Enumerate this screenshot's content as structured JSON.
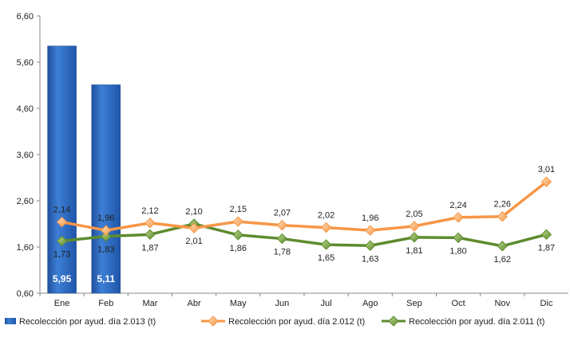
{
  "chart_data": {
    "type": "bar+line",
    "categories": [
      "Ene",
      "Feb",
      "Mar",
      "Abr",
      "May",
      "Jun",
      "Jul",
      "Ago",
      "Sep",
      "Oct",
      "Nov",
      "Dic"
    ],
    "ylim": [
      0.6,
      6.6
    ],
    "yticks": [
      "0,60",
      "1,60",
      "2,60",
      "3,60",
      "4,60",
      "5,60",
      "6,60"
    ],
    "ytick_values": [
      0.6,
      1.6,
      2.6,
      3.6,
      4.6,
      5.6,
      6.6
    ],
    "grid": false,
    "legend_position": "bottom",
    "series": [
      {
        "name": "Recolección por ayud. día 2.013 (t)",
        "kind": "bar",
        "color": "#2f6fc4",
        "values": [
          5.95,
          5.11,
          null,
          null,
          null,
          null,
          null,
          null,
          null,
          null,
          null,
          null
        ],
        "labels": [
          "5,95",
          "5,11"
        ]
      },
      {
        "name": "Recolección por ayud. día 2.012 (t)",
        "kind": "line",
        "color": "#f79646",
        "values": [
          2.14,
          1.96,
          2.12,
          2.01,
          2.15,
          2.07,
          2.02,
          1.96,
          2.05,
          2.24,
          2.26,
          3.01
        ],
        "labels": [
          "2,14",
          "1,96",
          "2,12",
          "2,01",
          "2,15",
          "2,07",
          "2,02",
          "1,96",
          "2,05",
          "2,24",
          "2,26",
          "3,01"
        ]
      },
      {
        "name": "Recolección por ayud. día 2.011 (t)",
        "kind": "line",
        "color": "#5e8b2e",
        "values": [
          1.73,
          1.83,
          1.87,
          2.1,
          1.86,
          1.78,
          1.65,
          1.63,
          1.81,
          1.8,
          1.62,
          1.87
        ],
        "labels": [
          "1,73",
          "1,83",
          "1,87",
          "2,10",
          "1,86",
          "1,78",
          "1,65",
          "1,63",
          "1,81",
          "1,80",
          "1,62",
          "1,87"
        ]
      }
    ]
  }
}
